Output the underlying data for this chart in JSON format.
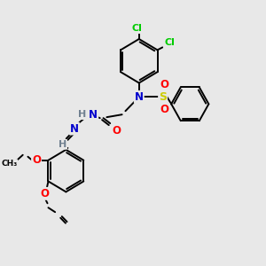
{
  "bg_color": "#e8e8e8",
  "bond_color": "#000000",
  "atom_colors": {
    "N": "#0000cd",
    "O": "#ff0000",
    "S": "#cccc00",
    "Cl": "#00cc00",
    "H": "#708090",
    "C": "#000000"
  }
}
